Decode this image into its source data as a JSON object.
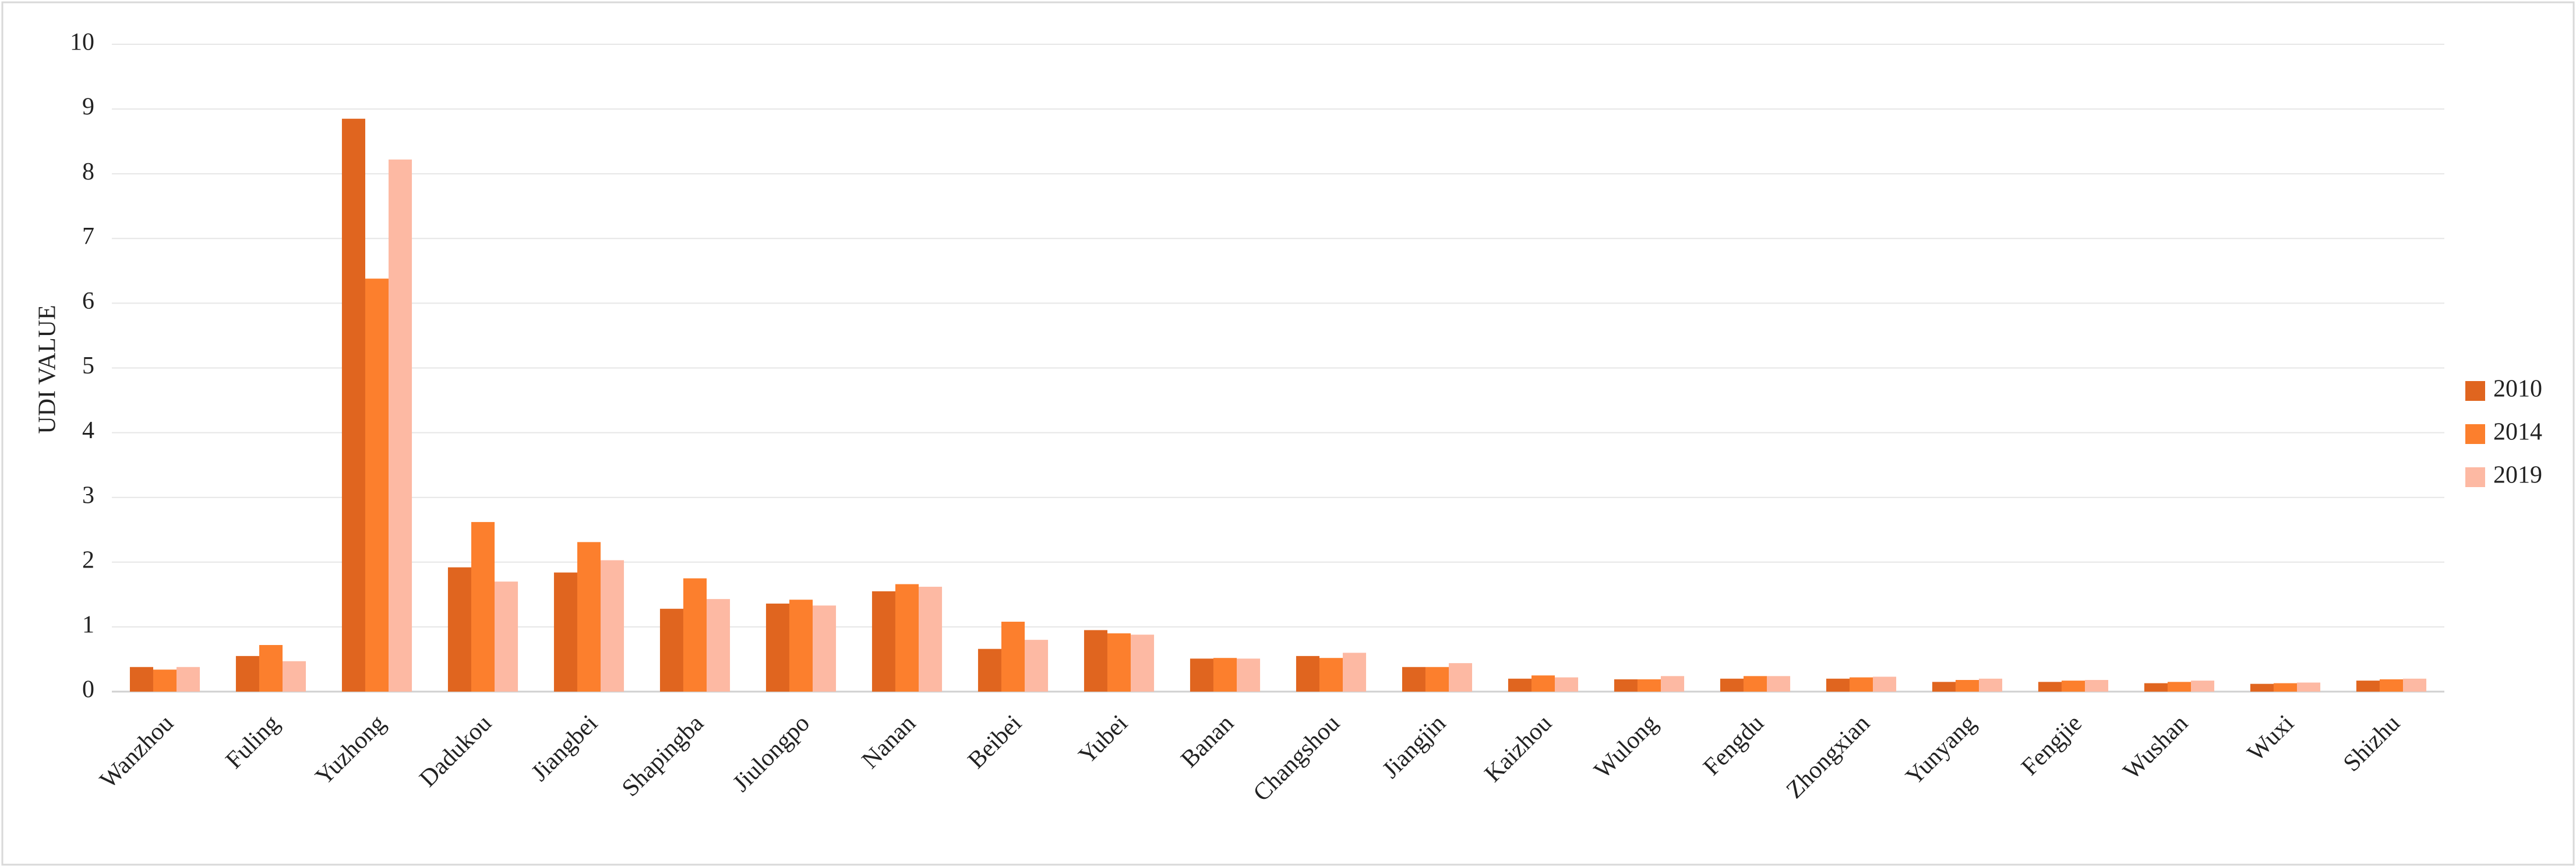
{
  "chart_data": {
    "type": "bar",
    "y_label": "UDI VALUE",
    "categories": [
      "Wanzhou",
      "Fuling",
      "Yuzhong",
      "Dadukou",
      "Jiangbei",
      "Shapingba",
      "Jiulongpo",
      "Nanan",
      "Beibei",
      "Yubei",
      "Banan",
      "Changshou",
      "Jiangjin",
      "Kaizhou",
      "Wulong",
      "Fengdu",
      "Zhongxian",
      "Yunyang",
      "Fengjie",
      "Wushan",
      "Wuxi",
      "Shizhu"
    ],
    "series": [
      {
        "name": "2010",
        "color": "#e0651f",
        "values": [
          0.38,
          0.55,
          8.85,
          1.92,
          1.84,
          1.28,
          1.36,
          1.55,
          0.66,
          0.95,
          0.51,
          0.55,
          0.38,
          0.2,
          0.19,
          0.2,
          0.2,
          0.15,
          0.15,
          0.13,
          0.12,
          0.17
        ]
      },
      {
        "name": "2014",
        "color": "#fc7f2d",
        "values": [
          0.34,
          0.72,
          6.38,
          2.62,
          2.31,
          1.75,
          1.42,
          1.66,
          1.08,
          0.9,
          0.52,
          0.52,
          0.38,
          0.25,
          0.19,
          0.24,
          0.22,
          0.18,
          0.17,
          0.15,
          0.13,
          0.19
        ]
      },
      {
        "name": "2019",
        "color": "#fdb9a3",
        "values": [
          0.38,
          0.47,
          8.22,
          1.7,
          2.03,
          1.43,
          1.33,
          1.62,
          0.8,
          0.88,
          0.51,
          0.6,
          0.44,
          0.22,
          0.24,
          0.24,
          0.23,
          0.2,
          0.18,
          0.17,
          0.14,
          0.2
        ]
      }
    ],
    "ylim": [
      0,
      10
    ],
    "yticks": [
      0,
      1,
      2,
      3,
      4,
      5,
      6,
      7,
      8,
      9,
      10
    ],
    "grid": true,
    "legend": "right"
  }
}
